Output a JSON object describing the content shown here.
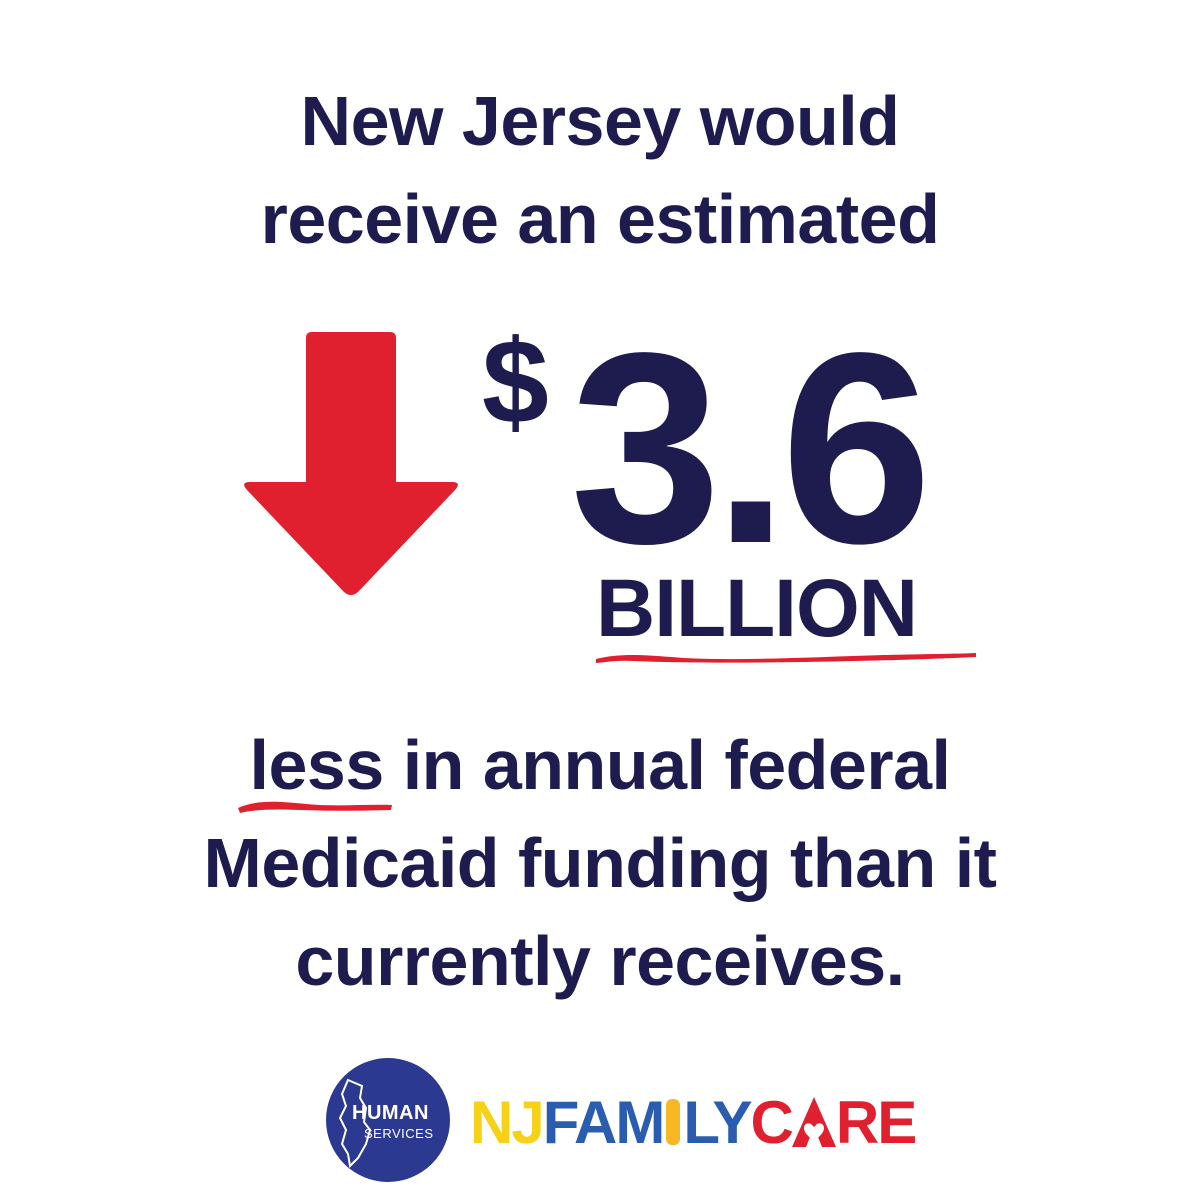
{
  "headline": {
    "line1": "New Jersey would",
    "line2": "receive an estimated"
  },
  "figure": {
    "currency_symbol": "$",
    "amount": "3.6",
    "unit": "BILLION",
    "direction_icon": "down-arrow-icon"
  },
  "body": {
    "less": "less",
    "line1_rest": " in annual federal",
    "line2": "Medicaid funding than it",
    "line3": "currently receives."
  },
  "logos": {
    "human_services": {
      "line1": "HUMAN",
      "line2": "SERVICES"
    },
    "njfamilycare": {
      "nj": "NJ",
      "family": "FAM",
      "family_end": "LY",
      "care_start": "C",
      "care_end": "RE"
    }
  },
  "colors": {
    "text": "#1e1c4e",
    "accent_red": "#e0202e",
    "hs_blue": "#2b3990",
    "nj_yellow": "#f7d117",
    "family_blue": "#2a5db0"
  }
}
